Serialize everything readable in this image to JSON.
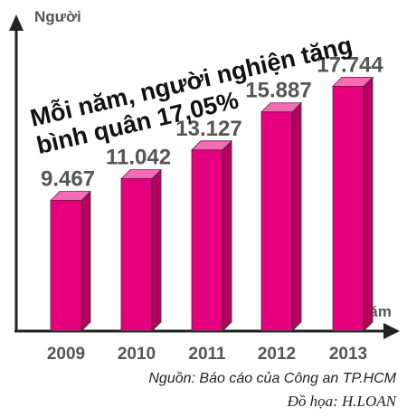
{
  "chart_data": {
    "type": "bar",
    "title": "Mỗi năm, người nghiện tăng bình quân 17,05%",
    "title_lines": [
      "Mỗi năm, người nghiện tăng",
      "bình quân 17,05%"
    ],
    "ylabel": "Người",
    "xlabel": "Năm",
    "categories": [
      "2009",
      "2010",
      "2011",
      "2012",
      "2013"
    ],
    "values": [
      9467,
      11042,
      13127,
      15887,
      17744
    ],
    "value_labels": [
      "9.467",
      "11.042",
      "13.127",
      "15.887",
      "17.744"
    ],
    "ylim": [
      0,
      20000
    ],
    "grid": false,
    "legend": "none",
    "colors": {
      "bar_front": "#e6007e",
      "bar_side": "#b8005f",
      "bar_top": "#f56bb6",
      "axis": "#222222",
      "text": "#555555"
    }
  },
  "source": "Nguồn: Báo cáo của Công an TP.HCM",
  "credit": "Đồ họa: H.LOAN"
}
